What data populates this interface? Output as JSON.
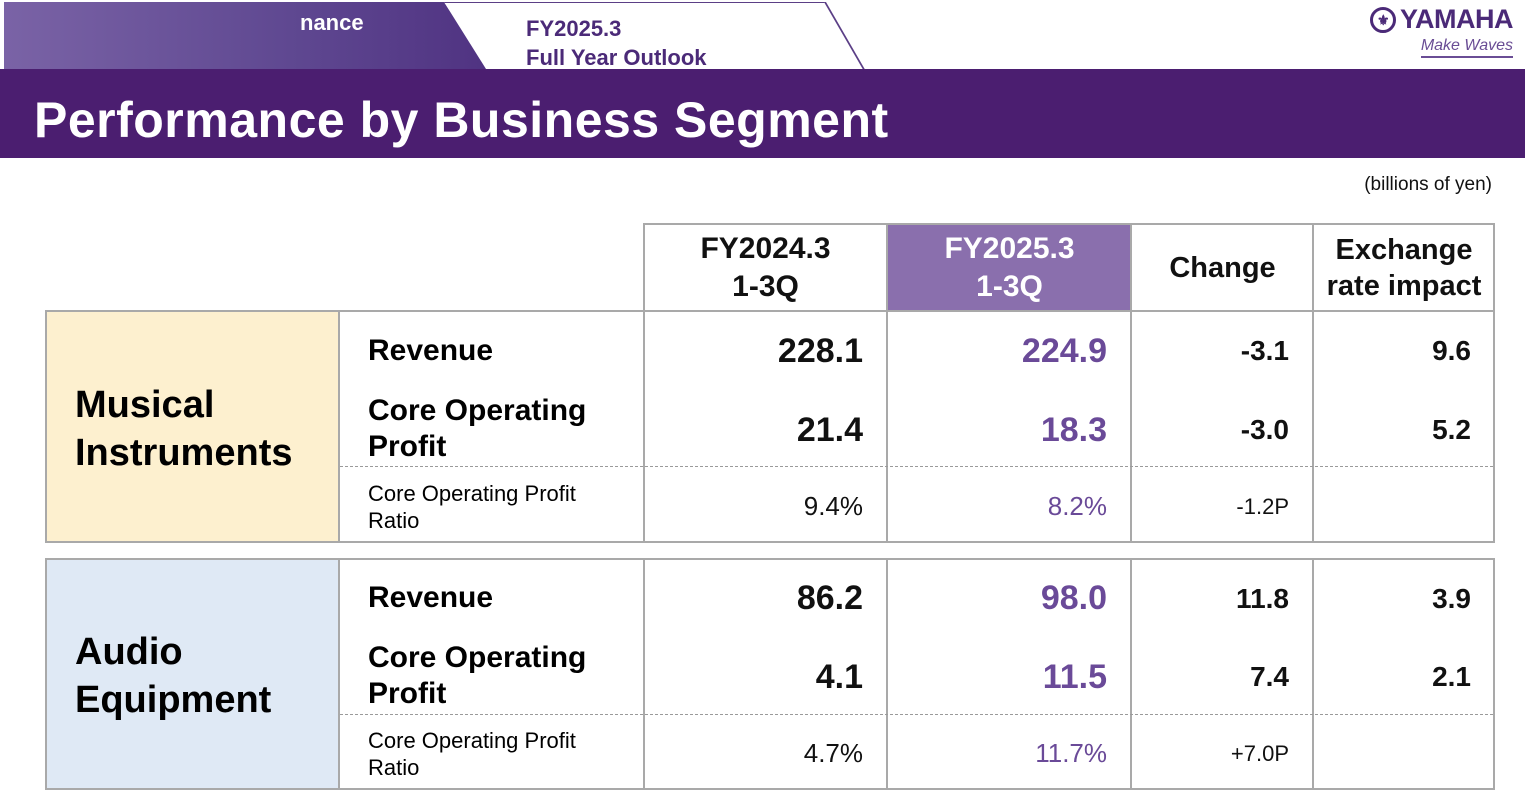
{
  "header": {
    "prev_tab": "nance",
    "current_tab_line1": "FY2025.3",
    "current_tab_line2": "Full Year Outlook",
    "logo_mark": "⚜",
    "logo_brand": "YAMAHA",
    "logo_tagline": "Make Waves",
    "title": "Performance by Business Segment",
    "unit": "(billions of yen)"
  },
  "columns": {
    "prior_line1": "FY2024.3",
    "prior_line2": "1-3Q",
    "current_line1": "FY2025.3",
    "current_line2": "1-3Q",
    "change": "Change",
    "fx_line1": "Exchange",
    "fx_line2": "rate impact"
  },
  "segments": [
    {
      "name_line1": "Musical",
      "name_line2": "Instruments",
      "rows": [
        {
          "label_line1": "Revenue",
          "label_line2": "",
          "prior": "228.1",
          "current": "224.9",
          "change": "-3.1",
          "fx": "9.6"
        },
        {
          "label_line1": "Core Operating",
          "label_line2": "Profit",
          "prior": "21.4",
          "current": "18.3",
          "change": "-3.0",
          "fx": "5.2"
        },
        {
          "label_line1": "Core Operating Profit",
          "label_line2": "Ratio",
          "prior": "9.4%",
          "current": "8.2%",
          "change": "-1.2P",
          "fx": ""
        }
      ]
    },
    {
      "name_line1": "Audio",
      "name_line2": "Equipment",
      "rows": [
        {
          "label_line1": "Revenue",
          "label_line2": "",
          "prior": "86.2",
          "current": "98.0",
          "change": "11.8",
          "fx": "3.9"
        },
        {
          "label_line1": "Core Operating",
          "label_line2": "Profit",
          "prior": "4.1",
          "current": "11.5",
          "change": "7.4",
          "fx": "2.1"
        },
        {
          "label_line1": "Core Operating Profit",
          "label_line2": "Ratio",
          "prior": "4.7%",
          "current": "11.7%",
          "change": "+7.0P",
          "fx": ""
        }
      ]
    }
  ],
  "colors": {
    "banner": "#4b1e70",
    "highlight_header": "#8a6fad",
    "current_values": "#6a4a98",
    "musical_bg": "#fdf0cf",
    "audio_bg": "#dfe9f5"
  }
}
